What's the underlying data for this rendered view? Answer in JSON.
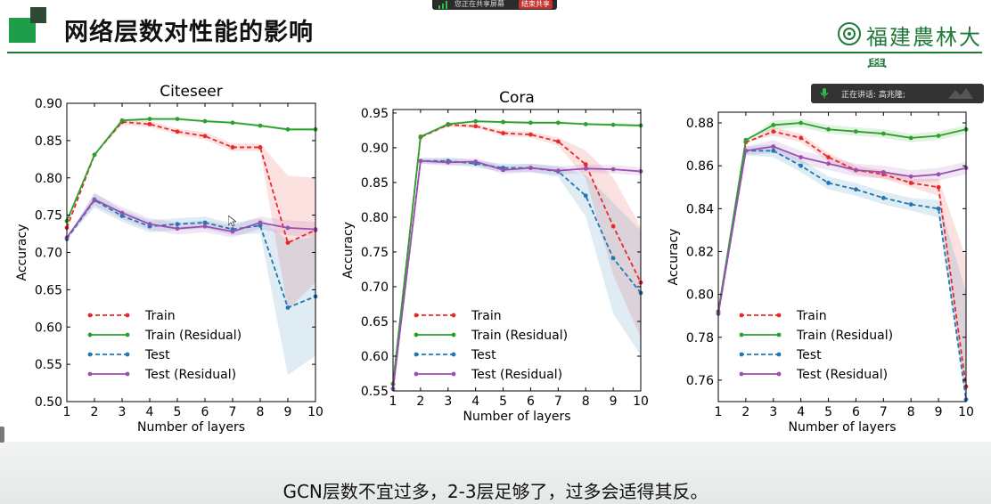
{
  "header": {
    "title": "网络层数对性能的影响",
    "university": "福建農林大學"
  },
  "screen_share": {
    "status": "您正在共享屏幕",
    "stop_button": "结束共享"
  },
  "speaker": {
    "label": "正在讲话:",
    "name": "高兆隆;"
  },
  "caption": "GCN层数不宜过多，2-3层足够了，过多会适得其反。",
  "colors": {
    "train": "#e8292c",
    "train_res": "#2ca02c",
    "test": "#1f77b4",
    "test_res": "#9b4fb0",
    "accent": "#1f7a3a"
  },
  "chart_data": [
    {
      "type": "line",
      "title": "Citeseer",
      "xlabel": "Number of layers",
      "ylabel": "Accuracy",
      "x": [
        1,
        2,
        3,
        4,
        5,
        6,
        7,
        8,
        9,
        10
      ],
      "xlim": [
        1,
        10
      ],
      "ylim": [
        0.5,
        0.9
      ],
      "yticks": [
        0.5,
        0.55,
        0.6,
        0.65,
        0.7,
        0.75,
        0.8,
        0.85,
        0.9
      ],
      "ytick_labels": [
        "0.50",
        "0.55",
        "0.60",
        "0.65",
        "0.70",
        "0.75",
        "0.80",
        "0.85",
        "0.90"
      ],
      "legend_position": "lower-left",
      "series": [
        {
          "name": "Train",
          "key": "train",
          "style": "dashed",
          "values": [
            0.733,
            0.831,
            0.875,
            0.872,
            0.862,
            0.856,
            0.841,
            0.841,
            0.713,
            0.73
          ],
          "band": [
            0,
            0,
            0.004,
            0.004,
            0.004,
            0.005,
            0.005,
            0.005,
            0.09,
            0.07
          ]
        },
        {
          "name": "Train (Residual)",
          "key": "train_res",
          "style": "solid",
          "values": [
            0.742,
            0.831,
            0.877,
            0.879,
            0.879,
            0.876,
            0.874,
            0.87,
            0.865,
            0.865
          ],
          "band": [
            0,
            0,
            0.002,
            0.002,
            0.002,
            0.002,
            0.002,
            0.002,
            0.002,
            0.002
          ]
        },
        {
          "name": "Test",
          "key": "test",
          "style": "dashed",
          "values": [
            0.718,
            0.77,
            0.749,
            0.735,
            0.738,
            0.74,
            0.731,
            0.736,
            0.626,
            0.641
          ],
          "band": [
            0,
            0.01,
            0.008,
            0.008,
            0.008,
            0.008,
            0.008,
            0.01,
            0.09,
            0.08
          ]
        },
        {
          "name": "Test (Residual)",
          "key": "test_res",
          "style": "solid",
          "values": [
            0.72,
            0.771,
            0.753,
            0.738,
            0.732,
            0.735,
            0.728,
            0.74,
            0.733,
            0.731
          ],
          "band": [
            0,
            0.008,
            0.008,
            0.008,
            0.008,
            0.008,
            0.008,
            0.008,
            0.01,
            0.01
          ]
        }
      ]
    },
    {
      "type": "line",
      "title": "Cora",
      "xlabel": "Number of layers",
      "ylabel": "Accuracy",
      "x": [
        1,
        2,
        3,
        4,
        5,
        6,
        7,
        8,
        9,
        10
      ],
      "xlim": [
        1,
        10
      ],
      "ylim": [
        0.55,
        0.955
      ],
      "yticks": [
        0.55,
        0.6,
        0.65,
        0.7,
        0.75,
        0.8,
        0.85,
        0.9,
        0.95
      ],
      "ytick_labels": [
        "0.55",
        "0.60",
        "0.65",
        "0.70",
        "0.75",
        "0.80",
        "0.85",
        "0.90",
        "0.95"
      ],
      "legend_position": "lower-left",
      "series": [
        {
          "name": "Train",
          "key": "train",
          "style": "dashed",
          "values": [
            0.56,
            0.915,
            0.933,
            0.931,
            0.921,
            0.919,
            0.909,
            0.876,
            0.787,
            0.706
          ],
          "band": [
            0,
            0,
            0.003,
            0.003,
            0.004,
            0.004,
            0.006,
            0.02,
            0.07,
            0.08
          ]
        },
        {
          "name": "Train (Residual)",
          "key": "train_res",
          "style": "solid",
          "values": [
            0.56,
            0.916,
            0.934,
            0.938,
            0.937,
            0.936,
            0.936,
            0.934,
            0.933,
            0.932
          ],
          "band": [
            0,
            0,
            0.002,
            0.002,
            0.002,
            0.002,
            0.002,
            0.002,
            0.002,
            0.002
          ]
        },
        {
          "name": "Test",
          "key": "test",
          "style": "dashed",
          "values": [
            0.553,
            0.881,
            0.881,
            0.877,
            0.871,
            0.871,
            0.866,
            0.831,
            0.741,
            0.691
          ],
          "band": [
            0,
            0.004,
            0.005,
            0.005,
            0.006,
            0.006,
            0.008,
            0.03,
            0.08,
            0.09
          ]
        },
        {
          "name": "Test (Residual)",
          "key": "test_res",
          "style": "solid",
          "values": [
            0.553,
            0.881,
            0.879,
            0.88,
            0.868,
            0.871,
            0.867,
            0.87,
            0.869,
            0.866
          ],
          "band": [
            0,
            0.004,
            0.005,
            0.005,
            0.006,
            0.006,
            0.006,
            0.006,
            0.006,
            0.006
          ]
        }
      ]
    },
    {
      "type": "line",
      "title": "",
      "xlabel": "Number of layers",
      "ylabel": "Accuracy",
      "x": [
        1,
        2,
        3,
        4,
        5,
        6,
        7,
        8,
        9,
        10
      ],
      "xlim": [
        1,
        10
      ],
      "ylim": [
        0.75,
        0.885
      ],
      "yticks": [
        0.76,
        0.78,
        0.8,
        0.82,
        0.84,
        0.86,
        0.88
      ],
      "ytick_labels": [
        "0.76",
        "0.78",
        "0.80",
        "0.82",
        "0.84",
        "0.86",
        "0.88"
      ],
      "legend_position": "lower-left",
      "series": [
        {
          "name": "Train",
          "key": "train",
          "style": "dashed",
          "values": [
            0.792,
            0.871,
            0.876,
            0.873,
            0.864,
            0.858,
            0.856,
            0.852,
            0.85,
            0.757
          ],
          "band": [
            0,
            0,
            0.002,
            0.002,
            0.002,
            0.002,
            0.002,
            0.002,
            0.004,
            0.06
          ]
        },
        {
          "name": "Train (Residual)",
          "key": "train_res",
          "style": "solid",
          "values": [
            0.792,
            0.872,
            0.879,
            0.88,
            0.877,
            0.876,
            0.875,
            0.873,
            0.874,
            0.877
          ],
          "band": [
            0,
            0,
            0.002,
            0.002,
            0.002,
            0.002,
            0.002,
            0.002,
            0.002,
            0.002
          ]
        },
        {
          "name": "Test",
          "key": "test",
          "style": "dashed",
          "values": [
            0.791,
            0.867,
            0.867,
            0.86,
            0.852,
            0.849,
            0.845,
            0.842,
            0.84,
            0.751
          ],
          "band": [
            0,
            0.002,
            0.003,
            0.003,
            0.003,
            0.003,
            0.003,
            0.003,
            0.004,
            0.05
          ]
        },
        {
          "name": "Test (Residual)",
          "key": "test_res",
          "style": "solid",
          "values": [
            0.791,
            0.867,
            0.869,
            0.864,
            0.861,
            0.858,
            0.857,
            0.855,
            0.856,
            0.859
          ],
          "band": [
            0,
            0.002,
            0.003,
            0.003,
            0.003,
            0.003,
            0.003,
            0.003,
            0.003,
            0.003
          ]
        }
      ]
    }
  ]
}
